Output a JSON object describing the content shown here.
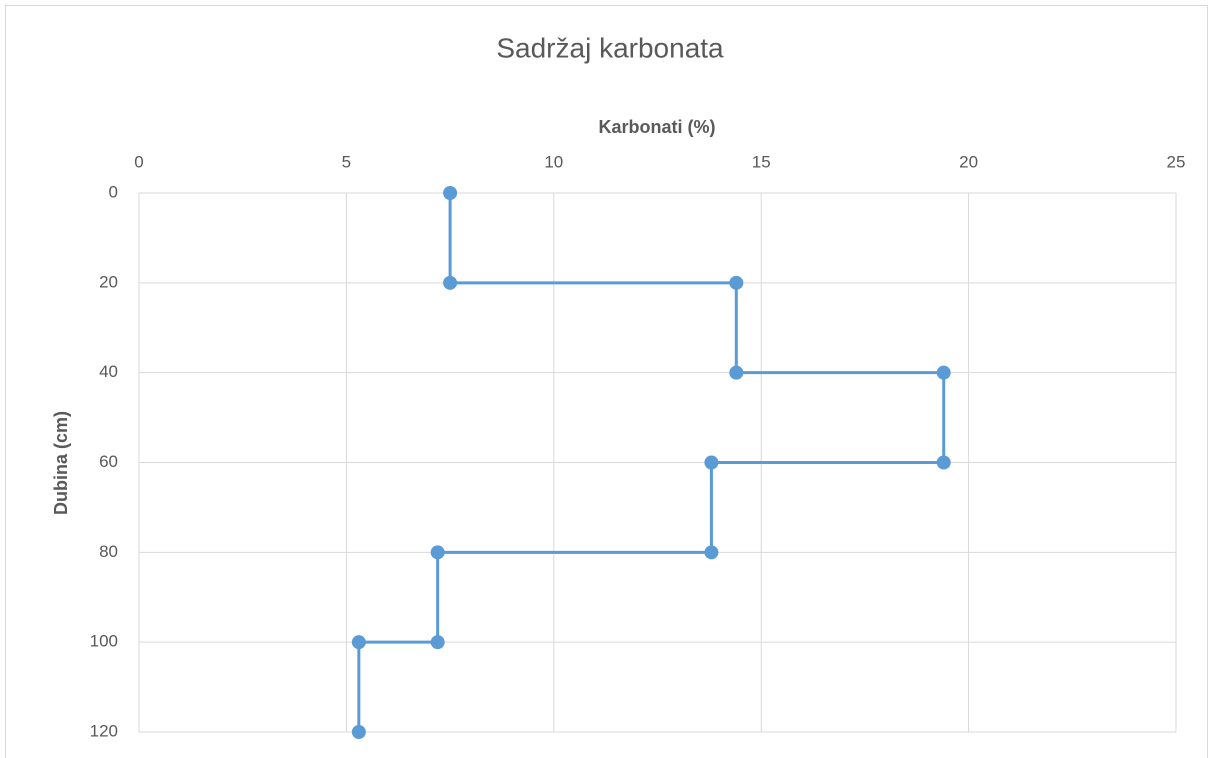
{
  "chart_data": {
    "type": "line",
    "title": "Sadržaj karbonata",
    "x_label": "Karbonati (%)",
    "y_label": "Dubina (cm)",
    "x": [
      7.5,
      7.5,
      14.4,
      14.4,
      19.4,
      19.4,
      13.8,
      13.8,
      7.2,
      7.2,
      5.3,
      5.3
    ],
    "values": [
      0,
      20,
      20,
      40,
      40,
      60,
      60,
      80,
      80,
      100,
      100,
      120
    ],
    "color": "#5b9bd5",
    "xlim": [
      0,
      25
    ],
    "xticks": [
      0,
      5,
      10,
      15,
      20,
      25
    ],
    "ylim": [
      0,
      120
    ],
    "yticks": [
      0,
      20,
      40,
      60,
      80,
      100,
      120
    ],
    "y_reversed": true,
    "x_axis_position": "top",
    "grid": true
  }
}
